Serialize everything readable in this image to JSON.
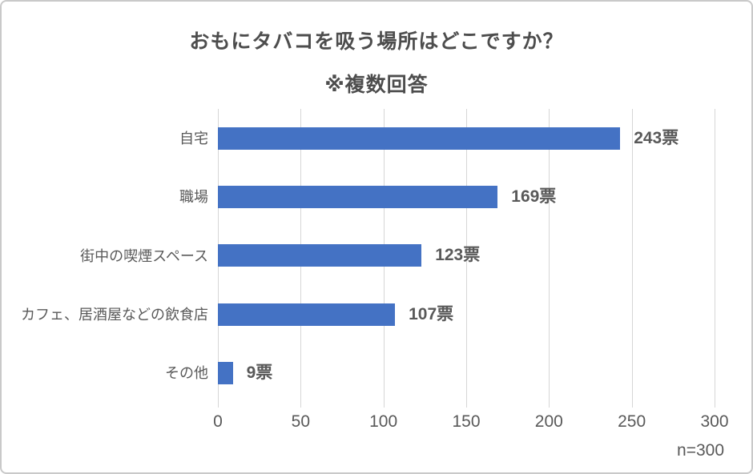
{
  "chart_data": {
    "type": "bar",
    "orientation": "horizontal",
    "title": "おもにタバコを吸う場所はどこですか？",
    "subtitle": "※複数回答",
    "categories": [
      "自宅",
      "職場",
      "街中の喫煙スペース",
      "カフェ、居酒屋などの飲食店",
      "その他"
    ],
    "values": [
      243,
      169,
      123,
      107,
      9
    ],
    "value_labels": [
      "243票",
      "169票",
      "123票",
      "107票",
      "9票"
    ],
    "x_ticks": [
      0,
      50,
      100,
      150,
      200,
      250,
      300
    ],
    "xlim": [
      0,
      300
    ],
    "grid": "vertical-gridlines-on",
    "legend": "none",
    "sample_note": "n=300",
    "colors": {
      "bar": "#4472C4",
      "gridline": "#d6d6d6",
      "title_text": "#4d4d4d",
      "label_text": "#595959",
      "border": "#c9c9c9",
      "background": "#ffffff"
    }
  }
}
